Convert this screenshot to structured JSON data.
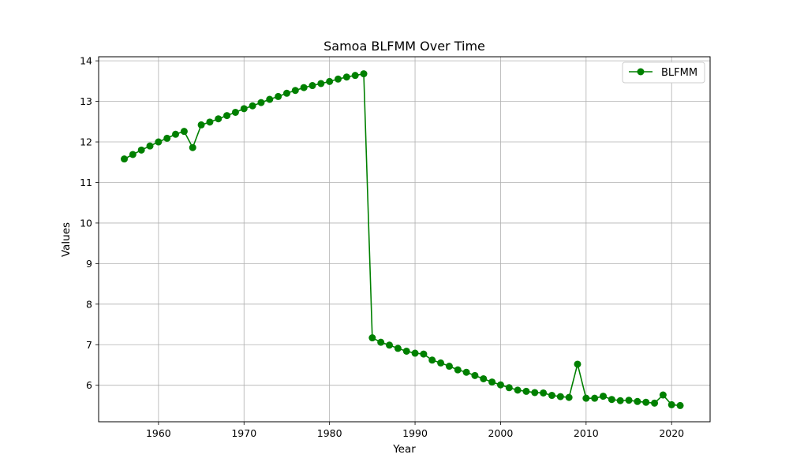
{
  "chart_data": {
    "type": "line",
    "title": "Samoa BLFMM Over Time",
    "xlabel": "Year",
    "ylabel": "Values",
    "xlim": [
      1953,
      2024.5
    ],
    "ylim": [
      5.1,
      14.1
    ],
    "x_ticks": [
      1960,
      1970,
      1980,
      1990,
      2000,
      2010,
      2020
    ],
    "y_ticks": [
      6,
      7,
      8,
      9,
      10,
      11,
      12,
      13,
      14
    ],
    "grid": true,
    "legend_position": "top-right",
    "series": [
      {
        "name": "BLFMM",
        "color": "#008000",
        "marker": "circle",
        "x": [
          1956,
          1957,
          1958,
          1959,
          1960,
          1961,
          1962,
          1963,
          1964,
          1965,
          1966,
          1967,
          1968,
          1969,
          1970,
          1971,
          1972,
          1973,
          1974,
          1975,
          1976,
          1977,
          1978,
          1979,
          1980,
          1981,
          1982,
          1983,
          1984,
          1985,
          1986,
          1987,
          1988,
          1989,
          1990,
          1991,
          1992,
          1993,
          1994,
          1995,
          1996,
          1997,
          1998,
          1999,
          2000,
          2001,
          2002,
          2003,
          2004,
          2005,
          2006,
          2007,
          2008,
          2009,
          2010,
          2011,
          2012,
          2013,
          2014,
          2015,
          2016,
          2017,
          2018,
          2019,
          2020,
          2021
        ],
        "values": [
          11.58,
          11.69,
          11.8,
          11.9,
          12.0,
          12.09,
          12.19,
          12.26,
          11.86,
          12.42,
          12.49,
          12.57,
          12.65,
          12.73,
          12.82,
          12.89,
          12.97,
          13.05,
          13.12,
          13.2,
          13.27,
          13.34,
          13.39,
          13.44,
          13.49,
          13.55,
          13.6,
          13.64,
          13.68,
          7.17,
          7.06,
          6.99,
          6.91,
          6.84,
          6.79,
          6.77,
          6.62,
          6.55,
          6.47,
          6.38,
          6.32,
          6.24,
          6.16,
          6.08,
          6.01,
          5.94,
          5.88,
          5.85,
          5.82,
          5.81,
          5.75,
          5.72,
          5.7,
          6.52,
          5.68,
          5.68,
          5.73,
          5.65,
          5.62,
          5.63,
          5.6,
          5.58,
          5.56,
          5.76,
          5.52,
          5.5
        ]
      }
    ]
  }
}
